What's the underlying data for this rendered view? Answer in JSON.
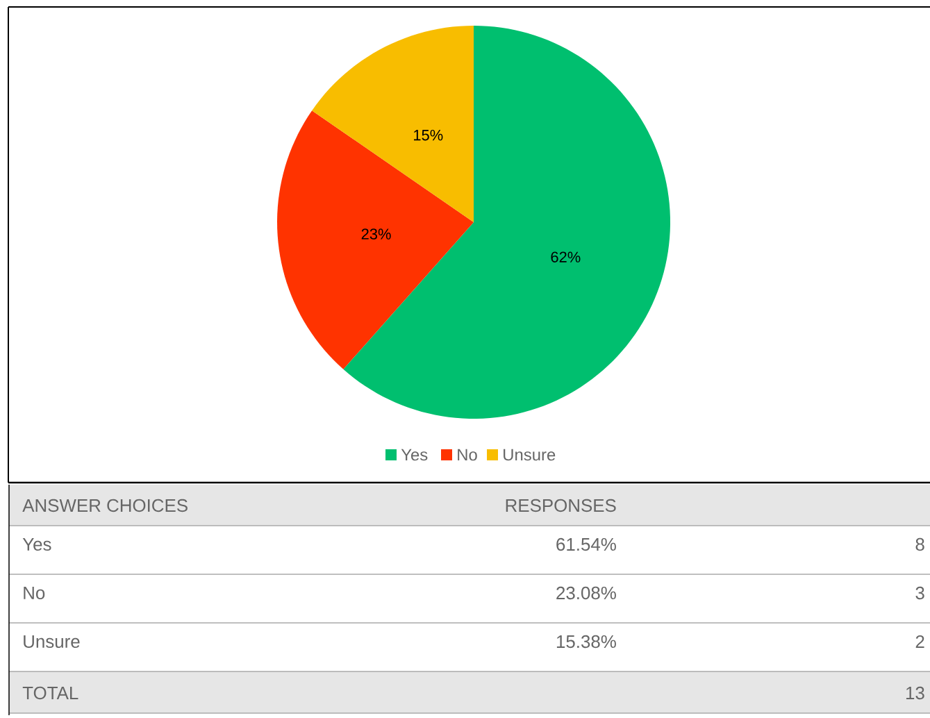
{
  "chart_data": [
    {
      "type": "pie",
      "categories": [
        "Yes",
        "No",
        "Unsure"
      ],
      "values": [
        61.54,
        23.08,
        15.38
      ],
      "colors": [
        "#00bf6f",
        "#ff3300",
        "#f8bd00"
      ],
      "value_labels": [
        "62%",
        "23%",
        "15%"
      ],
      "legend": "bottom"
    },
    {
      "type": "other",
      "annotations": [
        "ANSWER CHOICES",
        "RESPONSES",
        "Yes",
        "61.54%",
        "8",
        "No",
        "23.08%",
        "3",
        "Unsure",
        "15.38%",
        "2",
        "TOTAL",
        "13"
      ]
    }
  ]
}
